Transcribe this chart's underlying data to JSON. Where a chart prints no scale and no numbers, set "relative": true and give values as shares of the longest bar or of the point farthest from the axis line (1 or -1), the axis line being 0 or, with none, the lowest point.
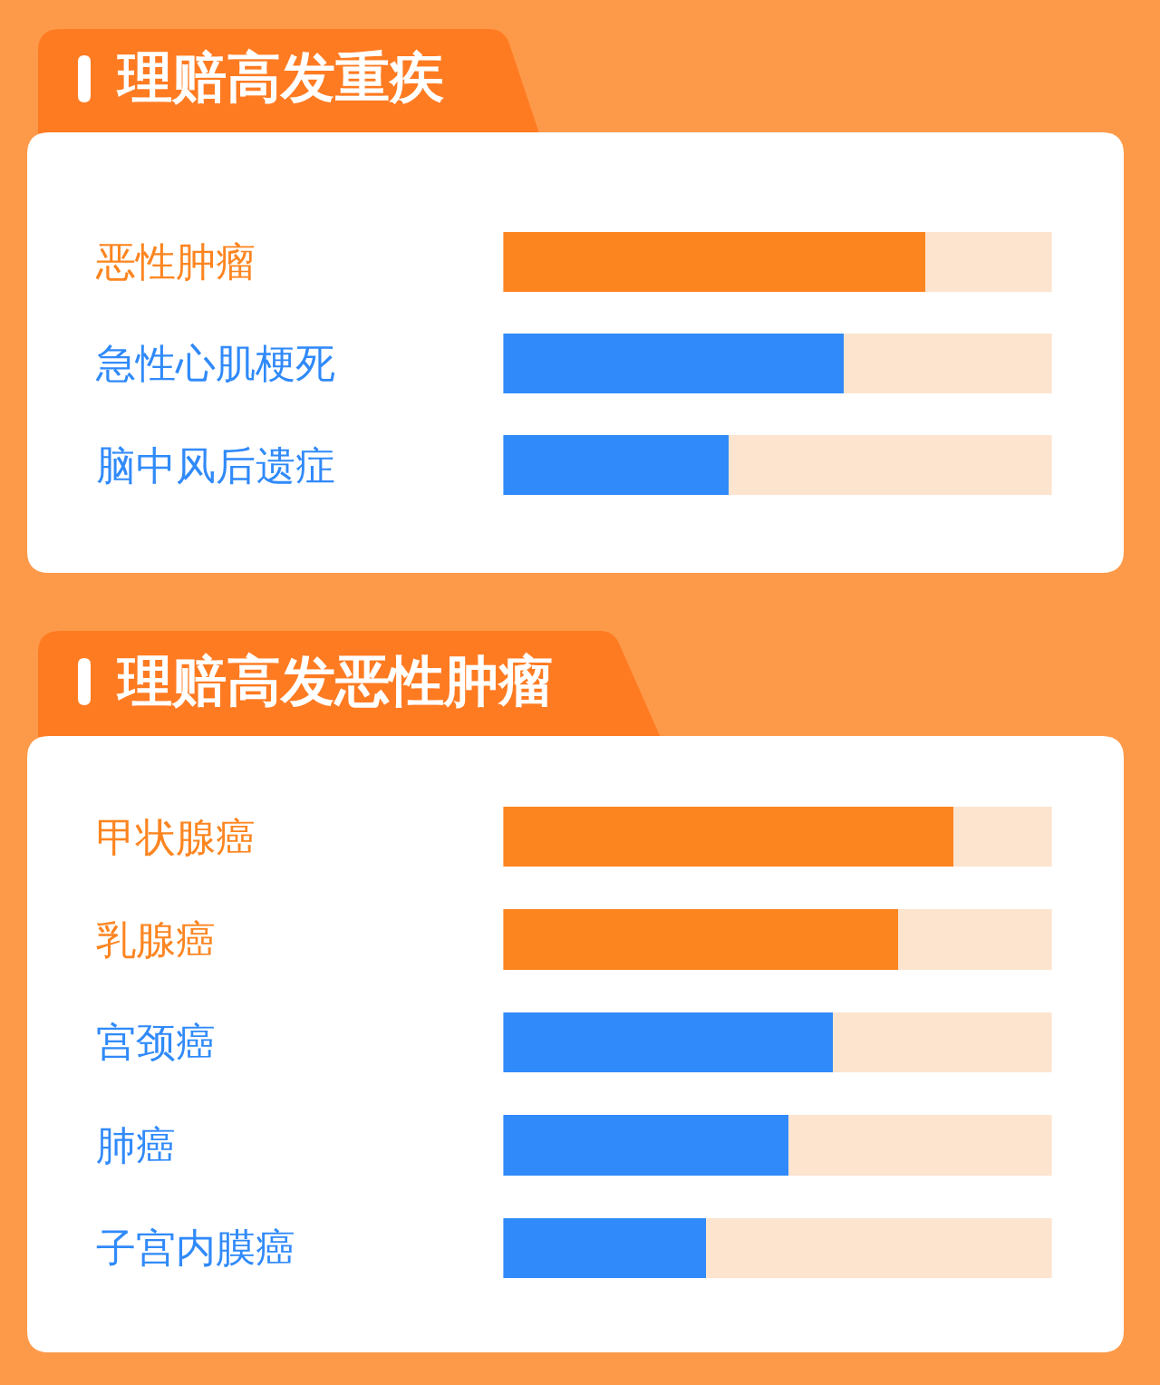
{
  "chart_data": [
    {
      "type": "bar",
      "orientation": "horizontal",
      "relative": true,
      "stacked": true,
      "title": "理赔高发重疾",
      "categories": [
        "恶性肿瘤",
        "急性心肌梗死",
        "脑中风后遗症"
      ],
      "series": [
        {
          "colors": [
            "#fd8520",
            "#308afa",
            "#308afa"
          ],
          "values": [
            0.77,
            0.62,
            0.41
          ]
        },
        {
          "color": "#fde4cf",
          "values": [
            0.23,
            0.38,
            0.59
          ]
        }
      ]
    },
    {
      "type": "bar",
      "orientation": "horizontal",
      "relative": true,
      "stacked": true,
      "title": "理赔高发恶性肿瘤",
      "categories": [
        "甲状腺癌",
        "乳腺癌",
        "宫颈癌",
        "肺癌",
        "子宫内膜癌"
      ],
      "series": [
        {
          "colors": [
            "#fd8520",
            "#fd8520",
            "#308afa",
            "#308afa",
            "#308afa"
          ],
          "values": [
            0.82,
            0.72,
            0.6,
            0.52,
            0.37
          ]
        },
        {
          "color": "#fde4cf",
          "values": [
            0.18,
            0.28,
            0.4,
            0.48,
            0.63
          ]
        }
      ]
    }
  ]
}
